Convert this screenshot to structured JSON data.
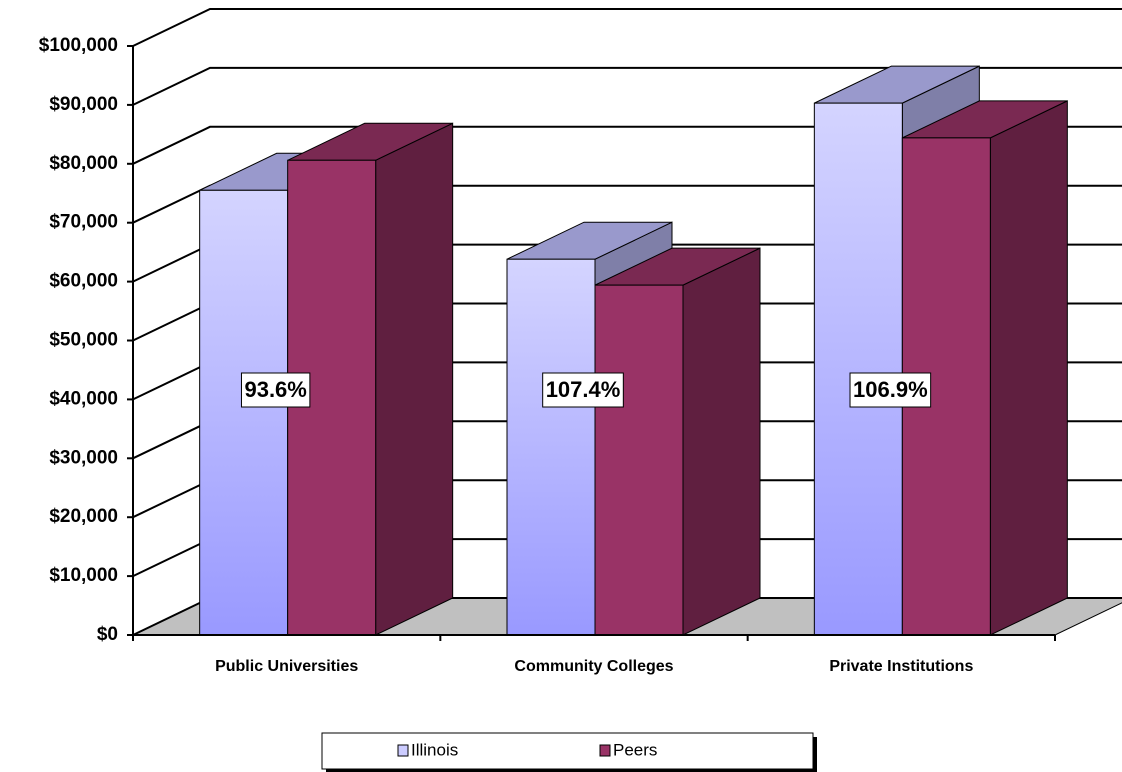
{
  "chart_data": {
    "type": "bar3d",
    "categories": [
      "Public Universities",
      "Community Colleges",
      "Private Institutions"
    ],
    "series": [
      {
        "name": "Illinois",
        "color": "#b3b3ff",
        "values": [
          75500,
          63800,
          90300
        ]
      },
      {
        "name": "Peers",
        "color": "#993366",
        "values": [
          80600,
          59400,
          84400
        ]
      }
    ],
    "annotations": [
      "93.6%",
      "107.4%",
      "106.9%"
    ],
    "ylim": [
      0,
      100000
    ],
    "yticks": [
      {
        "value": 0,
        "label": "$0"
      },
      {
        "value": 10000,
        "label": "$10,000"
      },
      {
        "value": 20000,
        "label": "$20,000"
      },
      {
        "value": 30000,
        "label": "$30,000"
      },
      {
        "value": 40000,
        "label": "$40,000"
      },
      {
        "value": 50000,
        "label": "$50,000"
      },
      {
        "value": 60000,
        "label": "$60,000"
      },
      {
        "value": 70000,
        "label": "$70,000"
      },
      {
        "value": 80000,
        "label": "$80,000"
      },
      {
        "value": 90000,
        "label": "$90,000"
      },
      {
        "value": 100000,
        "label": "$100,000"
      }
    ],
    "grid": true,
    "legend": "bottom"
  }
}
